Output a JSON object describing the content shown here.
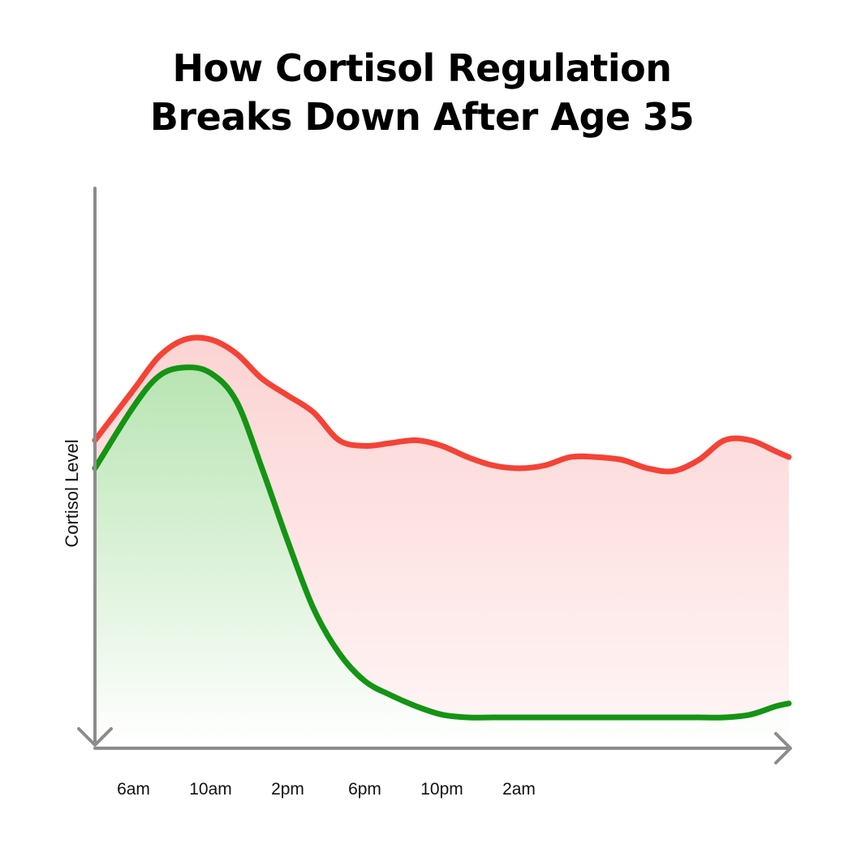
{
  "title_line1": "How Cortisol Regulation",
  "title_line2": "Breaks Down After Age 35",
  "colors": {
    "axis": "#8c8c8c",
    "elevated": "#f44336",
    "healthy": "#149414",
    "elevated_fill": "#fde1e1",
    "healthy_fill": "#c9ecc4"
  },
  "chart_data": {
    "type": "line",
    "title": "How Cortisol Regulation Breaks Down After Age 35",
    "xlabel": "",
    "ylabel": "Cortisol Level",
    "x_ticks": [
      "6am",
      "10am",
      "2pm",
      "6pm",
      "10pm",
      "2am"
    ],
    "xlim": [
      2.5,
      29.5
    ],
    "ylim": [
      0,
      10
    ],
    "grid": false,
    "legend": "none",
    "series": [
      {
        "color": "#f44336",
        "x": [
          2.5,
          4,
          5,
          6,
          7,
          8,
          9,
          10,
          11,
          12,
          13,
          14,
          15,
          16,
          17,
          18,
          19,
          20,
          21,
          22,
          23,
          24,
          25,
          26,
          27,
          28,
          29,
          29.5
        ],
        "y": [
          5.5,
          6.4,
          7.0,
          7.3,
          7.3,
          7.05,
          6.6,
          6.3,
          6.0,
          5.5,
          5.4,
          5.45,
          5.5,
          5.4,
          5.2,
          5.05,
          5.0,
          5.05,
          5.2,
          5.2,
          5.15,
          5.0,
          4.95,
          5.15,
          5.5,
          5.5,
          5.3,
          5.2
        ]
      },
      {
        "color": "#149414",
        "x": [
          2.5,
          4,
          5,
          6,
          7,
          8,
          9,
          10,
          11,
          12,
          13,
          14,
          15,
          16,
          17,
          18,
          19,
          20,
          21,
          22,
          23,
          24,
          25,
          26,
          27,
          28,
          29,
          29.5
        ],
        "y": [
          5.0,
          6.1,
          6.65,
          6.8,
          6.7,
          6.2,
          5.0,
          3.7,
          2.5,
          1.7,
          1.2,
          0.95,
          0.75,
          0.6,
          0.55,
          0.55,
          0.55,
          0.55,
          0.55,
          0.55,
          0.55,
          0.55,
          0.55,
          0.55,
          0.55,
          0.6,
          0.75,
          0.8
        ]
      }
    ]
  }
}
